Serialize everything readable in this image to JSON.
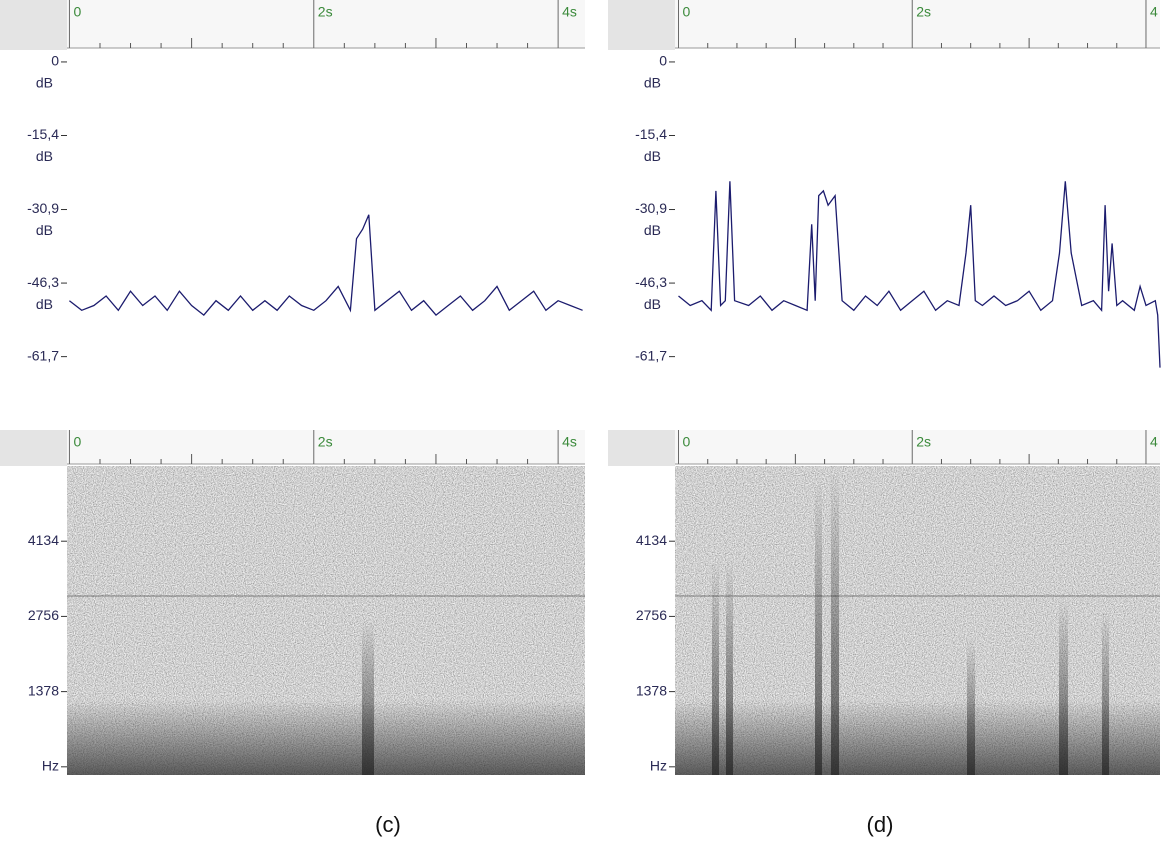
{
  "chart_data": [
    {
      "type": "line",
      "color": "#1c1c6e",
      "x": [
        0,
        0.1,
        0.2,
        0.3,
        0.4,
        0.5,
        0.6,
        0.7,
        0.8,
        0.9,
        1.0,
        1.1,
        1.2,
        1.3,
        1.4,
        1.5,
        1.6,
        1.7,
        1.8,
        1.9,
        2.0,
        2.1,
        2.2,
        2.3,
        2.35,
        2.4,
        2.45,
        2.5,
        2.6,
        2.7,
        2.8,
        2.9,
        3.0,
        3.1,
        3.2,
        3.3,
        3.4,
        3.5,
        3.6,
        3.7,
        3.8,
        3.9,
        4.0,
        4.1,
        4.2
      ],
      "values": [
        -50,
        -52,
        -51,
        -49,
        -52,
        -48,
        -51,
        -49,
        -52,
        -48,
        -51,
        -53,
        -50,
        -52,
        -49,
        -52,
        -50,
        -52,
        -49,
        -51,
        -52,
        -50,
        -47,
        -52,
        -37,
        -35,
        -32,
        -52,
        -50,
        -48,
        -52,
        -50,
        -53,
        -51,
        -49,
        -52,
        -50,
        -47,
        -52,
        -50,
        -48,
        -52,
        -50,
        -51,
        -52
      ],
      "xlim": [
        -0.02,
        4.22
      ],
      "ylim": [
        -64.5,
        2.5
      ],
      "xticks": [
        0,
        {
          "value": 2,
          "label": "2s"
        },
        {
          "value": 4,
          "label": "4s"
        }
      ],
      "xticks_minor": [
        0.25,
        0.5,
        0.75,
        1,
        1.25,
        1.5,
        1.75,
        2.25,
        2.5,
        2.75,
        3,
        3.25,
        3.5,
        3.75
      ],
      "yticks": [
        {
          "value": 0,
          "label": "0",
          "unit": "dB"
        },
        {
          "value": -15.4,
          "label": "-15,4",
          "unit": "dB"
        },
        {
          "value": -30.9,
          "label": "-30,9",
          "unit": "dB"
        },
        {
          "value": -46.3,
          "label": "-46,3",
          "unit": "dB"
        },
        {
          "value": -61.7,
          "label": "-61,7"
        }
      ]
    },
    {
      "type": "line",
      "color": "#1c1c6e",
      "x": [
        0,
        0.1,
        0.2,
        0.28,
        0.32,
        0.36,
        0.4,
        0.44,
        0.48,
        0.6,
        0.7,
        0.8,
        0.9,
        1.0,
        1.1,
        1.14,
        1.17,
        1.2,
        1.24,
        1.28,
        1.34,
        1.4,
        1.5,
        1.6,
        1.7,
        1.8,
        1.9,
        2.0,
        2.1,
        2.2,
        2.3,
        2.4,
        2.46,
        2.5,
        2.54,
        2.6,
        2.7,
        2.8,
        2.9,
        3.0,
        3.1,
        3.2,
        3.26,
        3.31,
        3.36,
        3.45,
        3.55,
        3.62,
        3.65,
        3.68,
        3.71,
        3.75,
        3.8,
        3.9,
        3.95,
        4.0,
        4.08,
        4.1,
        4.12
      ],
      "values": [
        -49,
        -51,
        -50,
        -52,
        -27,
        -51,
        -50,
        -25,
        -50,
        -51,
        -49,
        -52,
        -50,
        -51,
        -52,
        -34,
        -50,
        -28,
        -27,
        -30,
        -28,
        -50,
        -52,
        -49,
        -51,
        -48,
        -52,
        -50,
        -48,
        -52,
        -50,
        -51,
        -40,
        -30,
        -50,
        -51,
        -49,
        -51,
        -50,
        -48,
        -52,
        -50,
        -40,
        -25,
        -40,
        -51,
        -50,
        -52,
        -30,
        -48,
        -38,
        -51,
        -50,
        -52,
        -47,
        -51,
        -50,
        -53,
        -64
      ],
      "xlim": [
        -0.03,
        4.12
      ],
      "ylim": [
        -64.5,
        2.5
      ],
      "xticks": [
        0,
        {
          "value": 2,
          "label": "2s"
        },
        {
          "value": 4,
          "label": "4"
        }
      ],
      "xticks_minor": [
        0.25,
        0.5,
        0.75,
        1,
        1.25,
        1.5,
        1.75,
        2.25,
        2.5,
        2.75,
        3,
        3.25,
        3.5,
        3.75
      ],
      "yticks": [
        {
          "value": 0,
          "label": "0",
          "unit": "dB"
        },
        {
          "value": -15.4,
          "label": "-15,4",
          "unit": "dB"
        },
        {
          "value": -30.9,
          "label": "-30,9",
          "unit": "dB"
        },
        {
          "value": -46.3,
          "label": "-46,3",
          "unit": "dB"
        },
        {
          "value": -61.7,
          "label": "-61,7"
        }
      ]
    },
    {
      "type": "spectrogram",
      "xlim": [
        -0.02,
        4.22
      ],
      "ylim": [
        -150,
        5512
      ],
      "xticks": [
        0,
        {
          "value": 2,
          "label": "2s"
        },
        {
          "value": 4,
          "label": "4s"
        }
      ],
      "xticks_minor": [
        0.25,
        0.5,
        0.75,
        1,
        1.25,
        1.5,
        1.75,
        2.25,
        2.5,
        2.75,
        3,
        3.25,
        3.5,
        3.75
      ],
      "yticks": [
        4134,
        2756,
        1378,
        {
          "value": 0,
          "label": "Hz"
        }
      ]
    },
    {
      "type": "spectrogram",
      "xlim": [
        -0.03,
        4.12
      ],
      "ylim": [
        -150,
        5512
      ],
      "xticks": [
        0,
        {
          "value": 2,
          "label": "2s"
        },
        {
          "value": 4,
          "label": "4"
        }
      ],
      "xticks_minor": [
        0.25,
        0.5,
        0.75,
        1,
        1.25,
        1.5,
        1.75,
        2.25,
        2.5,
        2.75,
        3,
        3.25,
        3.5,
        3.75
      ],
      "yticks": [
        4134,
        2756,
        1378,
        {
          "value": 0,
          "label": "Hz"
        }
      ]
    }
  ],
  "captions": [
    "(c)",
    "(d)"
  ]
}
